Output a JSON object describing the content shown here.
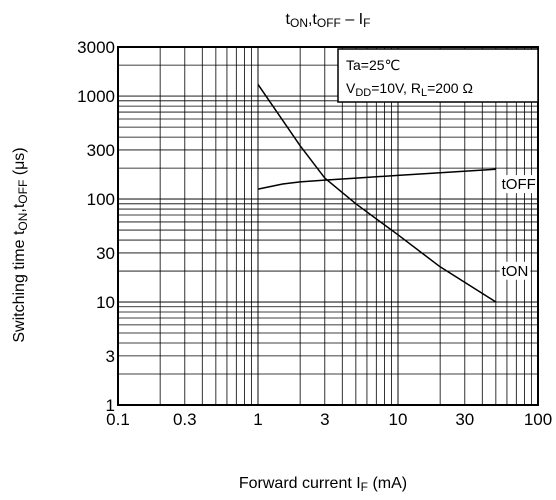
{
  "chart_data": {
    "type": "line",
    "title": {
      "t1": "t",
      "s1": "ON",
      "c": ",t",
      "s2": "OFF",
      "dash": " – I",
      "s3": "F"
    },
    "xlabel": {
      "main": "Forward current   I",
      "sub": "F",
      "unit": "   (mA)"
    },
    "ylabel": {
      "main": "Switching time   t",
      "s1": "ON",
      "c": ",t",
      "s2": "OFF",
      "unit": "   (μs)"
    },
    "x_scale": "log",
    "y_scale": "log",
    "xlim": [
      0.1,
      100
    ],
    "ylim": [
      1,
      3000
    ],
    "x_ticks": [
      0.1,
      0.3,
      1,
      3,
      10,
      30,
      100
    ],
    "x_tick_labels": [
      "0.1",
      "0.3",
      "1",
      "3",
      "10",
      "30",
      "100"
    ],
    "y_ticks": [
      1,
      3,
      10,
      30,
      100,
      300,
      1000,
      3000
    ],
    "y_tick_labels": [
      "1",
      "3",
      "10",
      "30",
      "100",
      "300",
      "1000",
      "3000"
    ],
    "grid": true,
    "conditions": {
      "ta": "Ta=25℃",
      "vdd_main": "V",
      "vdd_sub": "DD",
      "vdd_val": "=10V, R",
      "rl_sub": "L",
      "rl_val": "=200 Ω"
    },
    "series": [
      {
        "name": "tON",
        "x": [
          1,
          2,
          3,
          5,
          10,
          20,
          50
        ],
        "y": [
          1300,
          330,
          160,
          90,
          45,
          22,
          10
        ]
      },
      {
        "name": "tOFF",
        "x": [
          1,
          1.5,
          2,
          3,
          5,
          10,
          20,
          50
        ],
        "y": [
          125,
          140,
          147,
          153,
          160,
          170,
          180,
          195
        ]
      }
    ],
    "series_label_positions": [
      {
        "name": "tON",
        "x": 55,
        "y": 18
      },
      {
        "name": "tOFF",
        "x": 55,
        "y": 125
      }
    ]
  }
}
